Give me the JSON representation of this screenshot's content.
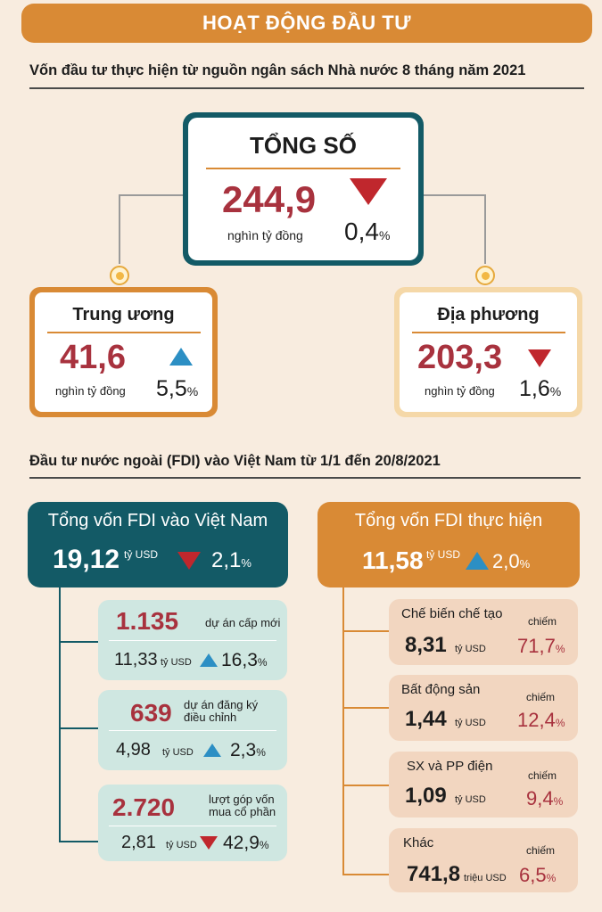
{
  "banner": "HOẠT ĐỘNG ĐẦU TƯ",
  "section1": {
    "title": "Vốn đầu tư thực hiện từ nguồn ngân sách Nhà nước 8 tháng năm 2021",
    "total": {
      "label": "TỔNG SỐ",
      "value": "244,9",
      "unit": "nghìn tỷ đồng",
      "change": "0,4",
      "change_unit": "%",
      "direction": "down"
    },
    "central": {
      "label": "Trung ương",
      "value": "41,6",
      "unit": "nghìn tỷ đồng",
      "change": "5,5",
      "change_unit": "%",
      "direction": "up"
    },
    "local": {
      "label": "Địa phương",
      "value": "203,3",
      "unit": "nghìn tỷ đồng",
      "change": "1,6",
      "change_unit": "%",
      "direction": "down"
    }
  },
  "section2": {
    "title": "Đầu tư nước ngoài (FDI) vào Việt Nam từ 1/1 đến 20/8/2021",
    "left": {
      "header": "Tổng vốn FDI vào Việt Nam",
      "value": "19,12",
      "unit": "tỷ USD",
      "change": "2,1",
      "change_unit": "%",
      "direction": "down",
      "items": [
        {
          "count": "1.135",
          "desc1": "dự án cấp mới",
          "desc2": "",
          "value": "11,33",
          "unit": "tỷ USD",
          "change": "16,3",
          "change_unit": "%",
          "direction": "up"
        },
        {
          "count": "639",
          "desc1": "dự án đăng ký",
          "desc2": "điều chỉnh",
          "value": "4,98",
          "unit": "tỷ USD",
          "change": "2,3",
          "change_unit": "%",
          "direction": "up"
        },
        {
          "count": "2.720",
          "desc1": "lượt góp vốn",
          "desc2": "mua cổ phần",
          "value": "2,81",
          "unit": "tỷ USD",
          "change": "42,9",
          "change_unit": "%",
          "direction": "down"
        }
      ]
    },
    "right": {
      "header": "Tổng vốn FDI thực hiện",
      "value": "11,58",
      "unit": "tỷ USD",
      "change": "2,0",
      "change_unit": "%",
      "direction": "up",
      "items": [
        {
          "label": "Chế biến chế tạo",
          "value": "8,31",
          "unit": "tỷ USD",
          "share_label": "chiếm",
          "share": "71,7",
          "share_unit": "%"
        },
        {
          "label": "Bất động sản",
          "value": "1,44",
          "unit": "tỷ USD",
          "share_label": "chiếm",
          "share": "12,4",
          "share_unit": "%"
        },
        {
          "label": "SX và PP điện",
          "value": "1,09",
          "unit": "tỷ USD",
          "share_label": "chiếm",
          "share": "9,4",
          "share_unit": "%"
        },
        {
          "label": "Khác",
          "value": "741,8",
          "unit": "triệu USD",
          "share_label": "chiếm",
          "share": "6,5",
          "share_unit": "%"
        }
      ]
    }
  },
  "colors": {
    "orange": "#d98a35",
    "teal": "#135a66",
    "red": "#a8323e",
    "down": "#c0272d",
    "up": "#2c8fc4",
    "teal_card": "#cfe7e1",
    "sand_card": "#f2d6c0"
  }
}
